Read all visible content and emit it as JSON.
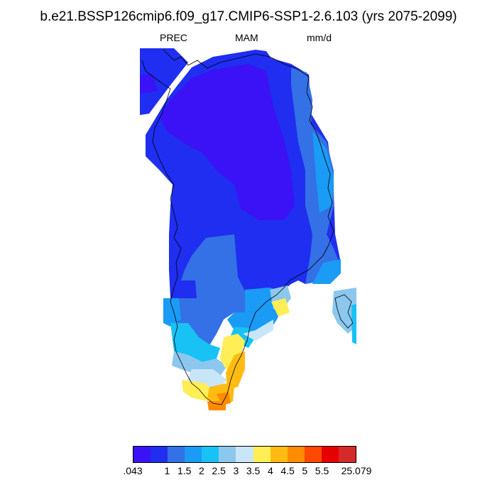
{
  "title": "b.e21.BSSP126cmip6.f09_g17.CMIP6-SSP1-2.6.103 (yrs 2075-2099)",
  "variable": "PREC",
  "season": "MAM",
  "units": "mm/d",
  "colorbar": {
    "colors": [
      "#3a12f5",
      "#1f2ef0",
      "#3470e6",
      "#1a9bf5",
      "#18c2f5",
      "#8cc7ee",
      "#c8e6f8",
      "#ffee55",
      "#ffbb11",
      "#ff8c00",
      "#ff4800",
      "#e60000",
      "#d42a2a"
    ],
    "labels": [
      ".043",
      "1",
      "1.5",
      "2",
      "2.5",
      "3",
      "3.5",
      "4",
      "4.5",
      "5",
      "5.5",
      "25.079"
    ]
  }
}
